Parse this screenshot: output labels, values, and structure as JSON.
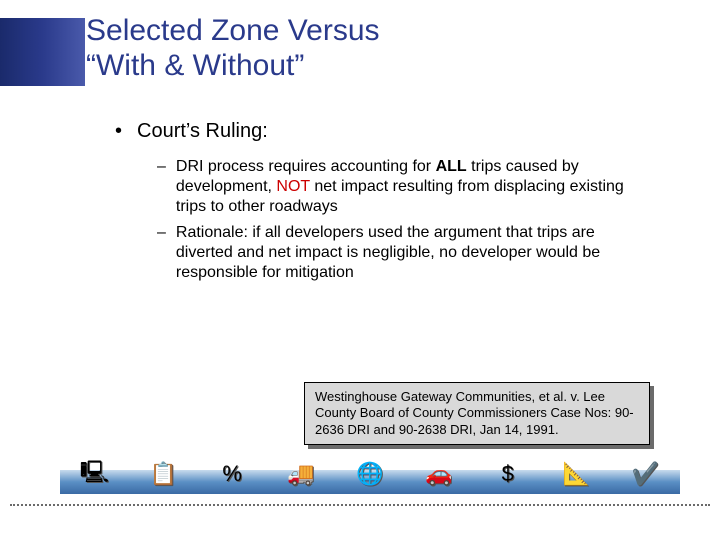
{
  "title_line1": "Selected Zone Versus",
  "title_line2": "“With & Without”",
  "l1": "Court’s Ruling:",
  "l2a_pre": "DRI process requires accounting for ",
  "l2a_all": "ALL",
  "l2a_mid": " trips caused by development, ",
  "l2a_not": "NOT",
  "l2a_post": " net impact resulting from displacing existing trips to other roadways",
  "l2b": "Rationale: if all developers used the argument that trips are diverted and net impact is negligible, no developer would be responsible for mitigation",
  "citation": "Westinghouse Gateway Communities, et al. v. Lee County Board of County Commissioners Case Nos: 90-2636 DRI and 90-2638 DRI, Jan 14, 1991.",
  "colors": {
    "title": "#2a3a8b",
    "title_bar_gradient": [
      "#1a2a6b",
      "#2a3a8b",
      "#4a5aab"
    ],
    "red": "#cc0000",
    "citation_bg": "#d9d9d9",
    "citation_shadow": "#6b6b6b",
    "bar_gradient": [
      "#c8dbed",
      "#5a8fc4",
      "#3a6aa4"
    ],
    "dotted": "#6a6a6a"
  },
  "icons": [
    "🖳️",
    "📋",
    "%",
    "🚚",
    "🌐",
    "🚗",
    "$",
    "📐",
    "✔️"
  ]
}
